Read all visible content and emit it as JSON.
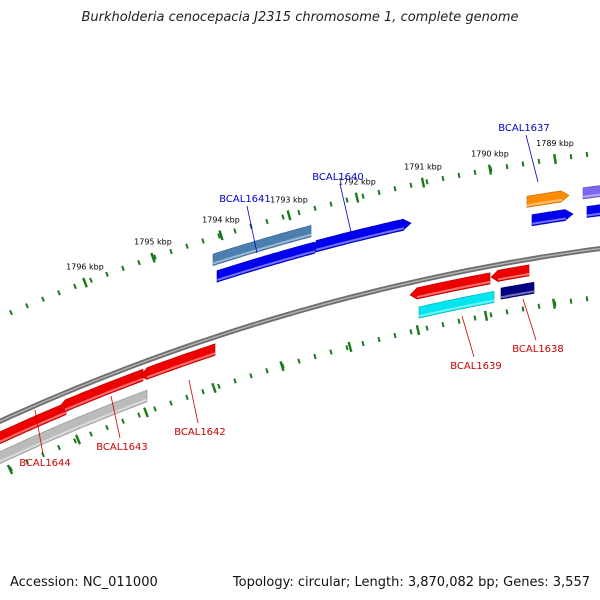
{
  "title": "Burkholderia cenocepacia J2315 chromosome 1, complete genome",
  "footer": {
    "accession": "Accession: NC_011000",
    "summary": "Topology: circular; Length: 3,870,082 bp; Genes: 3,557"
  },
  "colors": {
    "ring": "#808080",
    "ticks": "#1a7a1a",
    "tick_label": "#000000",
    "label_forward": "#0000cc",
    "label_reverse": "#cc0000"
  },
  "scale": {
    "unit": "kbp",
    "ticks": [
      {
        "label": "1789 kbp"
      },
      {
        "label": "1790 kbp"
      },
      {
        "label": "1791 kbp"
      },
      {
        "label": "1792 kbp"
      },
      {
        "label": "1793 kbp"
      },
      {
        "label": "1794 kbp"
      },
      {
        "label": "1795 kbp"
      },
      {
        "label": "1796 kbp"
      }
    ]
  },
  "features": [
    {
      "id": "outer-teal-gene",
      "strand": "+",
      "color": "#4a7fb0"
    },
    {
      "id": "BCAL1641",
      "strand": "+",
      "color": "#0000ee",
      "label": "BCAL1641"
    },
    {
      "id": "BCAL1640",
      "strand": "+",
      "color": "#0000ee",
      "label": "BCAL1640"
    },
    {
      "id": "orange-gene",
      "strand": "+",
      "color": "#ff8c00"
    },
    {
      "id": "BCAL1637",
      "strand": "+",
      "color": "#0000ee",
      "label": "BCAL1637"
    },
    {
      "id": "purple-gene",
      "strand": "+",
      "color": "#7b68ee"
    },
    {
      "id": "edge-blue-gene",
      "strand": "+",
      "color": "#0000ee"
    },
    {
      "id": "BCAL1644",
      "strand": "-",
      "color": "#ee0000",
      "label": "BCAL1644"
    },
    {
      "id": "BCAL1643",
      "strand": "-",
      "color": "#ee0000",
      "label": "BCAL1643"
    },
    {
      "id": "BCAL1642",
      "strand": "-",
      "color": "#ee0000",
      "label": "BCAL1642"
    },
    {
      "id": "grey-gene",
      "strand": "-",
      "color": "#bbbbbb"
    },
    {
      "id": "BCAL1639",
      "strand": "-",
      "color": "#ee0000",
      "label": "BCAL1639"
    },
    {
      "id": "cyan-gene",
      "strand": "-",
      "color": "#00e5ee"
    },
    {
      "id": "small-red-gene",
      "strand": "-",
      "color": "#ee0000"
    },
    {
      "id": "BCAL1638",
      "strand": "-",
      "color": "#000080",
      "label": "BCAL1638"
    }
  ]
}
